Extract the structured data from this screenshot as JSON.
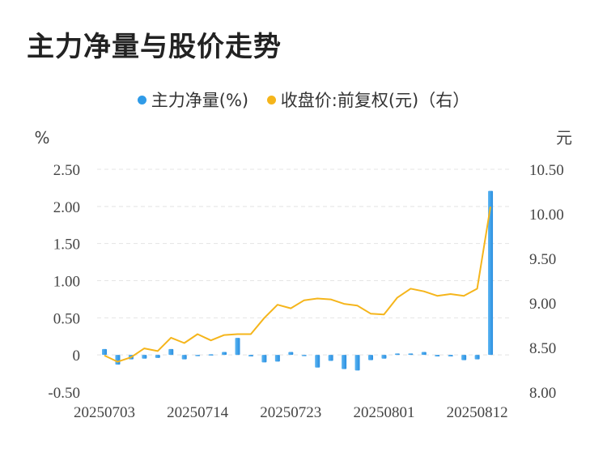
{
  "title": "主力净量与股价走势",
  "chart_data": {
    "type": "bar+line",
    "legend": [
      {
        "name": "主力净量(%)",
        "color": "#2f9be8"
      },
      {
        "name": "收盘价:前复权(元)（右）",
        "color": "#f5b51b"
      }
    ],
    "left_unit": "%",
    "right_unit": "元",
    "left_ticks": [
      "2.50",
      "2.00",
      "1.50",
      "1.00",
      "0.50",
      "0",
      "-0.50"
    ],
    "right_ticks": [
      "10.50",
      "10.00",
      "9.50",
      "9.00",
      "8.50",
      "8.00"
    ],
    "ylim_left": [
      -0.5,
      2.5
    ],
    "ylim_right": [
      8.0,
      10.5
    ],
    "x_tick_labels": [
      "20250703",
      "20250714",
      "20250723",
      "20250801",
      "20250812"
    ],
    "x_tick_index": [
      0,
      7,
      14,
      21,
      28
    ],
    "dates": [
      "20250703",
      "20250704",
      "20250707",
      "20250708",
      "20250709",
      "20250710",
      "20250711",
      "20250714",
      "20250715",
      "20250716",
      "20250717",
      "20250718",
      "20250721",
      "20250722",
      "20250723",
      "20250724",
      "20250725",
      "20250728",
      "20250729",
      "20250730",
      "20250731",
      "20250801",
      "20250804",
      "20250805",
      "20250806",
      "20250807",
      "20250808",
      "20250811",
      "20250812",
      "20250813"
    ],
    "series": [
      {
        "name": "主力净量(%)",
        "type": "bar",
        "values": [
          0.08,
          -0.13,
          -0.06,
          -0.05,
          -0.04,
          0.08,
          -0.06,
          -0.01,
          0.0,
          0.04,
          0.23,
          -0.02,
          -0.1,
          -0.09,
          0.04,
          -0.01,
          -0.17,
          -0.08,
          -0.19,
          -0.21,
          -0.07,
          -0.05,
          0.02,
          0.02,
          0.04,
          -0.02,
          -0.02,
          -0.07,
          -0.06,
          2.21
        ]
      },
      {
        "name": "收盘价:前复权(元)（右）",
        "type": "line",
        "values": [
          8.41,
          8.34,
          8.39,
          8.49,
          8.46,
          8.61,
          8.55,
          8.65,
          8.58,
          8.64,
          8.65,
          8.65,
          8.83,
          8.98,
          8.94,
          9.03,
          9.05,
          9.04,
          8.99,
          8.97,
          8.88,
          8.87,
          9.06,
          9.16,
          9.13,
          9.08,
          9.1,
          9.08,
          9.16,
          10.08
        ]
      }
    ]
  }
}
